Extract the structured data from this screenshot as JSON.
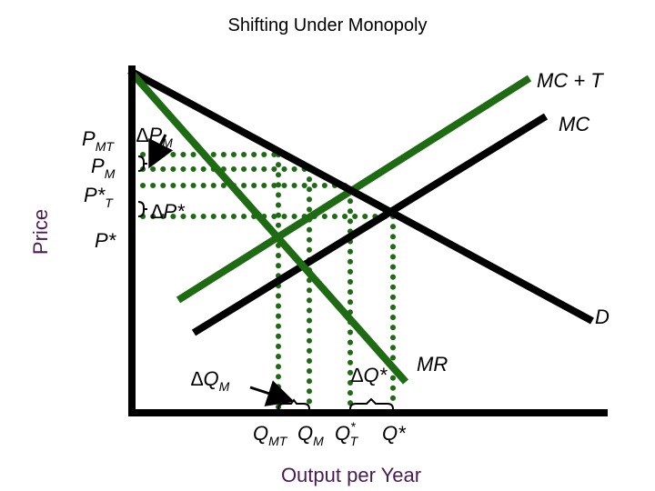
{
  "title": "Shifting Under Monopoly",
  "axes": {
    "y_label": "Price",
    "x_label": "Output per Year"
  },
  "curves": {
    "mc_t": "MC + T",
    "mc": "MC",
    "demand": "D",
    "mr": "MR"
  },
  "price_labels": {
    "pmt_main": "P",
    "pmt_sub": "MT",
    "delta_pm_main": "∆P",
    "delta_pm_sub": "M",
    "pm_main": "P",
    "pm_sub": "M",
    "pt_main": "P*",
    "pt_sub": "T",
    "delta_pstar": "∆P*",
    "pstar": "P*"
  },
  "quantity_labels": {
    "delta_qm_main": "∆Q",
    "delta_qm_sub": "M",
    "delta_qstar": "∆Q*",
    "qmt_main": "Q",
    "qmt_sub": "MT",
    "qm_main": "Q",
    "qm_sub": "M",
    "qt_main": "Q",
    "qt_sub": "T",
    "qt_sup": "*",
    "qstar": "Q*"
  },
  "colors": {
    "green": "#1e6b14",
    "black": "#000000",
    "dots": "#1e6b14",
    "axis_label": "#4b1a55"
  }
}
